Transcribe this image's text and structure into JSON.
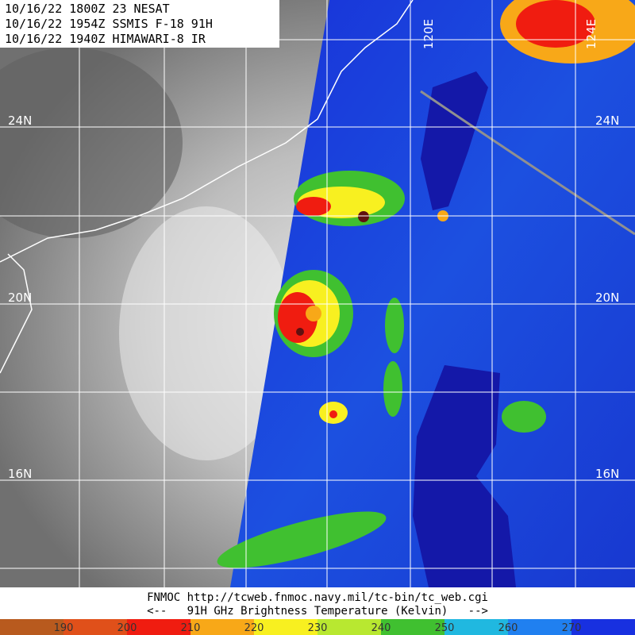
{
  "header": {
    "lines": [
      "10/16/22 1800Z  23 NESAT",
      "10/16/22 1954Z  SSMIS F-18 91H",
      "10/16/22 1940Z  HIMAWARI-8 IR"
    ]
  },
  "map": {
    "lat_labels": [
      "24N",
      "20N",
      "16N"
    ],
    "lat_labels_right": [
      "24N",
      "20N",
      "16N"
    ],
    "lon_labels": [
      "120E",
      "124E"
    ]
  },
  "footer": {
    "source": "FNMOC  http://tcweb.fnmoc.navy.mil/tc-bin/tc_web.cgi",
    "caption": "<--   91H GHz Brightness Temperature (Kelvin)   -->"
  },
  "colorbar": {
    "range": [
      180,
      280
    ],
    "ticks": [
      190,
      200,
      210,
      220,
      230,
      240,
      250,
      260,
      270
    ],
    "colors": [
      "#b85a1e",
      "#e0501a",
      "#f01c10",
      "#f8a818",
      "#f8f020",
      "#b8e830",
      "#40c030",
      "#20b8e0",
      "#2080f0",
      "#1830e0"
    ]
  }
}
